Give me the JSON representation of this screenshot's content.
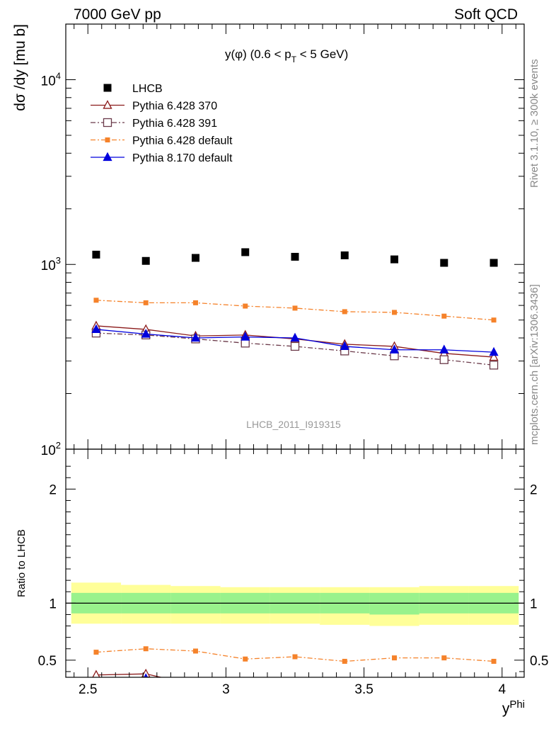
{
  "header": {
    "left": "7000 GeV pp",
    "right": "Soft QCD"
  },
  "side_labels": {
    "rivet": "Rivet 3.1.10, ≥ 300k events",
    "mcplots": "mcplots.cern.ch [arXiv:1306.3436]"
  },
  "chart_data": [
    {
      "type": "scatter",
      "panel": "main",
      "title_main": "y(φ) (0.6 < p",
      "title_sub": "T",
      "title_end": " < 5 GeV)",
      "ylabel": "dσ /dy [mu b]",
      "xlabel": "",
      "yscale": "log",
      "ylim": [
        100,
        20000
      ],
      "xlim": [
        2.42,
        4.08
      ],
      "ytick_labels": [
        {
          "v": 100,
          "base": "10",
          "exp": "2"
        },
        {
          "v": 1000,
          "base": "10",
          "exp": "3"
        },
        {
          "v": 10000,
          "base": "10",
          "exp": "4"
        }
      ],
      "watermark": "LHCB_2011_I919315",
      "x": [
        2.53,
        2.71,
        2.89,
        3.07,
        3.25,
        3.43,
        3.61,
        3.79,
        3.97
      ],
      "series": [
        {
          "name": "LHCB",
          "color": "#000000",
          "marker": "square-filled",
          "line": "none",
          "values": [
            1130,
            1045,
            1085,
            1165,
            1100,
            1120,
            1065,
            1020,
            1020
          ]
        },
        {
          "name": "Pythia 6.428 370",
          "color": "#8b1a1a",
          "marker": "triangle-open",
          "line": "solid",
          "values": [
            465,
            445,
            410,
            415,
            395,
            370,
            360,
            330,
            315
          ]
        },
        {
          "name": "Pythia 6.428 391",
          "color": "#6b3a4a",
          "marker": "square-open",
          "line": "dashdot",
          "values": [
            425,
            415,
            395,
            375,
            360,
            340,
            320,
            305,
            285
          ]
        },
        {
          "name": "Pythia 6.428 default",
          "color": "#f5822a",
          "marker": "square-filled",
          "line": "dashdot",
          "values": [
            640,
            620,
            620,
            595,
            580,
            555,
            550,
            525,
            500
          ]
        },
        {
          "name": "Pythia 8.170 default",
          "color": "#0000dd",
          "marker": "triangle-filled",
          "line": "solid",
          "values": [
            445,
            420,
            400,
            405,
            400,
            360,
            345,
            345,
            335
          ]
        }
      ]
    },
    {
      "type": "line",
      "panel": "ratio",
      "ylabel": "Ratio to LHCB",
      "xlabel": "y",
      "xlabel_sup": "Phi",
      "ylim": [
        0.35,
        2.35
      ],
      "xlim": [
        2.42,
        4.08
      ],
      "xticks": [
        2.5,
        3,
        3.5,
        4
      ],
      "xtick_labels": [
        "2.5",
        "3",
        "3.5",
        "4"
      ],
      "yticks": [
        0.5,
        1,
        2
      ],
      "ytick_labels": [
        "0.5",
        "1",
        "2"
      ],
      "bins": [
        2.44,
        2.62,
        2.8,
        2.98,
        3.16,
        3.34,
        3.52,
        3.7,
        3.88,
        4.06
      ],
      "band_outer": {
        "color": "#ffff99",
        "lo": [
          0.82,
          0.82,
          0.82,
          0.82,
          0.82,
          0.81,
          0.8,
          0.81,
          0.81
        ],
        "hi": [
          1.18,
          1.16,
          1.15,
          1.14,
          1.14,
          1.14,
          1.14,
          1.15,
          1.15
        ]
      },
      "band_inner": {
        "color": "#99f28c",
        "lo": [
          0.91,
          0.91,
          0.91,
          0.91,
          0.91,
          0.91,
          0.9,
          0.91,
          0.91
        ],
        "hi": [
          1.09,
          1.09,
          1.09,
          1.09,
          1.09,
          1.09,
          1.09,
          1.09,
          1.09
        ]
      },
      "series": [
        {
          "name": "Pythia 6.428 default",
          "color": "#f5822a",
          "marker": "square-filled",
          "line": "dashdot",
          "x": [
            2.53,
            2.71,
            2.89,
            3.07,
            3.25,
            3.43,
            3.61,
            3.79,
            3.97
          ],
          "values": [
            0.57,
            0.6,
            0.58,
            0.51,
            0.53,
            0.49,
            0.52,
            0.52,
            0.49
          ]
        },
        {
          "name": "Pythia 6.428 370",
          "color": "#8b1a1a",
          "marker": "triangle-open",
          "line": "solid",
          "x": [
            2.53,
            2.71,
            2.8
          ],
          "values": [
            0.37,
            0.38,
            0.33
          ]
        },
        {
          "name": "Pythia 8.170 default",
          "color": "#0000dd",
          "marker": "triangle-filled",
          "line": "solid",
          "x": [
            2.71
          ],
          "values": [
            0.34
          ]
        }
      ]
    }
  ]
}
